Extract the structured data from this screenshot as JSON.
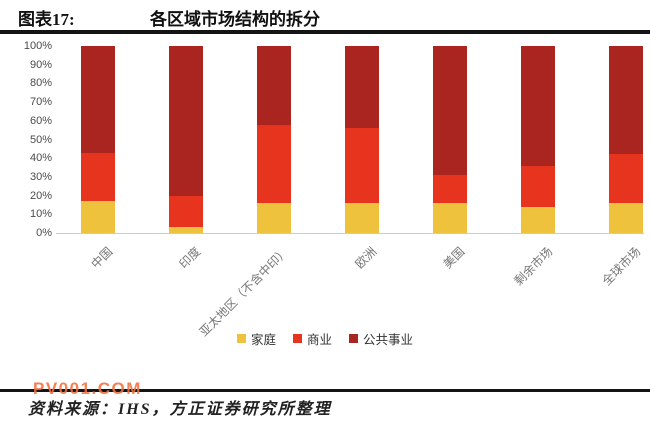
{
  "header": {
    "figure_label": "图表17:",
    "title": "各区域市场结构的拆分"
  },
  "chart_data": {
    "type": "bar",
    "stacked": true,
    "percent": true,
    "title": "各区域市场结构的拆分",
    "categories": [
      "中国",
      "印度",
      "亚太地区（不含中印）",
      "欧洲",
      "美国",
      "剩余市场",
      "全球市场"
    ],
    "series": [
      {
        "name": "家庭",
        "color": "#eec23c",
        "values": [
          17,
          3,
          16,
          16,
          16,
          14,
          16
        ]
      },
      {
        "name": "商业",
        "color": "#e6341f",
        "values": [
          26,
          17,
          42,
          40,
          15,
          22,
          26
        ]
      },
      {
        "name": "公共事业",
        "color": "#aa2420",
        "values": [
          57,
          80,
          42,
          44,
          69,
          64,
          58
        ]
      }
    ],
    "ylabel": "",
    "xlabel": "",
    "ylim": [
      0,
      100
    ],
    "yticks": [
      "100%",
      "90%",
      "80%",
      "70%",
      "60%",
      "50%",
      "40%",
      "30%",
      "20%",
      "10%",
      "0%"
    ],
    "grid": false,
    "legend_position": "bottom"
  },
  "footer": {
    "source": "资料来源：IHS，方正证券研究所整理",
    "watermark": "PV001.COM"
  },
  "colors": {
    "household": "#eec23c",
    "commercial": "#e6341f",
    "public_utility": "#aa2420",
    "watermark": "#f2703d",
    "rule": "#141414",
    "axis_line": "#cccccc"
  }
}
